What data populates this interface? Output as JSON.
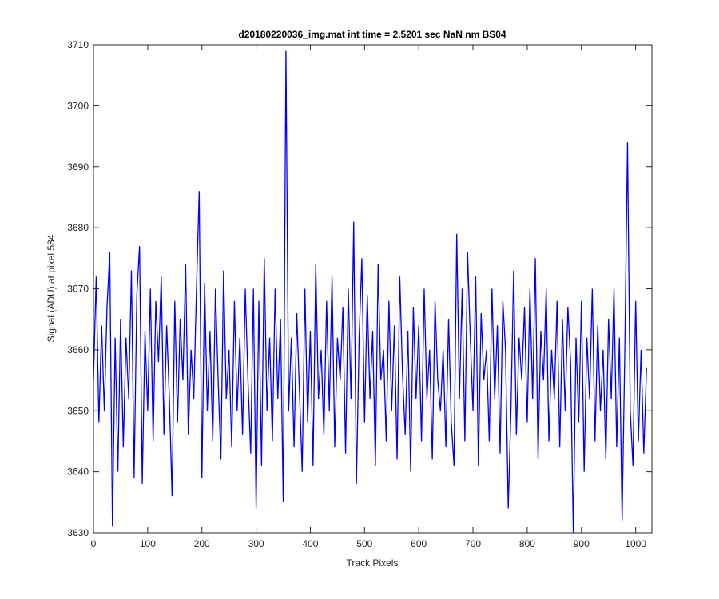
{
  "chart_data": {
    "type": "line",
    "title": "d20180220036_img.mat int time = 2.5201 sec  NaN nm BS04",
    "xlabel": "Track Pixels",
    "ylabel": "Signal (ADU) at pixel 584",
    "xlim": [
      0,
      1030
    ],
    "ylim": [
      3630,
      3710
    ],
    "xticks": [
      0,
      100,
      200,
      300,
      400,
      500,
      600,
      700,
      800,
      900,
      1000
    ],
    "yticks": [
      3630,
      3640,
      3650,
      3660,
      3670,
      3680,
      3690,
      3700,
      3710
    ],
    "x": [
      0,
      5,
      10,
      15,
      20,
      25,
      30,
      35,
      40,
      45,
      50,
      55,
      60,
      65,
      70,
      75,
      80,
      85,
      90,
      95,
      100,
      105,
      110,
      115,
      120,
      125,
      130,
      135,
      140,
      145,
      150,
      155,
      160,
      165,
      170,
      175,
      180,
      185,
      190,
      195,
      200,
      205,
      210,
      215,
      220,
      225,
      230,
      235,
      240,
      245,
      250,
      255,
      260,
      265,
      270,
      275,
      280,
      285,
      290,
      295,
      300,
      305,
      310,
      315,
      320,
      325,
      330,
      335,
      340,
      345,
      350,
      355,
      360,
      365,
      370,
      375,
      380,
      385,
      390,
      395,
      400,
      405,
      410,
      415,
      420,
      425,
      430,
      435,
      440,
      445,
      450,
      455,
      460,
      465,
      470,
      475,
      480,
      485,
      490,
      495,
      500,
      505,
      510,
      515,
      520,
      525,
      530,
      535,
      540,
      545,
      550,
      555,
      560,
      565,
      570,
      575,
      580,
      585,
      590,
      595,
      600,
      605,
      610,
      615,
      620,
      625,
      630,
      635,
      640,
      645,
      650,
      655,
      660,
      665,
      670,
      675,
      680,
      685,
      690,
      695,
      700,
      705,
      710,
      715,
      720,
      725,
      730,
      735,
      740,
      745,
      750,
      755,
      760,
      765,
      770,
      775,
      780,
      785,
      790,
      795,
      800,
      805,
      810,
      815,
      820,
      825,
      830,
      835,
      840,
      845,
      850,
      855,
      860,
      865,
      870,
      875,
      880,
      885,
      890,
      895,
      900,
      905,
      910,
      915,
      920,
      925,
      930,
      935,
      940,
      945,
      950,
      955,
      960,
      965,
      970,
      975,
      980,
      985,
      990,
      995,
      1000,
      1005,
      1010,
      1015,
      1020
    ],
    "series": [
      {
        "name": "signal",
        "color": "#0000ff",
        "values": [
          3655,
          3672,
          3648,
          3664,
          3650,
          3667,
          3676,
          3631,
          3662,
          3640,
          3665,
          3644,
          3662,
          3652,
          3673,
          3639,
          3669,
          3677,
          3638,
          3663,
          3650,
          3670,
          3645,
          3668,
          3658,
          3672,
          3646,
          3664,
          3652,
          3636,
          3668,
          3648,
          3665,
          3655,
          3674,
          3646,
          3660,
          3652,
          3670,
          3686,
          3639,
          3671,
          3650,
          3663,
          3645,
          3670,
          3655,
          3642,
          3673,
          3652,
          3660,
          3644,
          3668,
          3650,
          3662,
          3646,
          3670,
          3655,
          3643,
          3670,
          3634,
          3668,
          3641,
          3675,
          3650,
          3662,
          3645,
          3670,
          3652,
          3665,
          3635,
          3709,
          3650,
          3662,
          3644,
          3666,
          3653,
          3640,
          3670,
          3648,
          3663,
          3641,
          3674,
          3652,
          3660,
          3646,
          3668,
          3650,
          3672,
          3644,
          3662,
          3655,
          3667,
          3643,
          3670,
          3652,
          3681,
          3638,
          3662,
          3675,
          3648,
          3669,
          3652,
          3663,
          3641,
          3674,
          3655,
          3660,
          3645,
          3668,
          3650,
          3664,
          3642,
          3672,
          3656,
          3646,
          3663,
          3640,
          3667,
          3652,
          3664,
          3645,
          3670,
          3652,
          3660,
          3642,
          3668,
          3655,
          3650,
          3660,
          3644,
          3665,
          3648,
          3641,
          3679,
          3652,
          3670,
          3645,
          3676,
          3662,
          3650,
          3672,
          3641,
          3666,
          3655,
          3660,
          3645,
          3670,
          3652,
          3664,
          3643,
          3668,
          3660,
          3634,
          3650,
          3673,
          3646,
          3662,
          3655,
          3667,
          3648,
          3670,
          3652,
          3675,
          3642,
          3663,
          3655,
          3670,
          3645,
          3660,
          3652,
          3668,
          3644,
          3665,
          3650,
          3667,
          3658,
          3630,
          3662,
          3648,
          3668,
          3640,
          3662,
          3652,
          3670,
          3645,
          3664,
          3650,
          3660,
          3642,
          3665,
          3652,
          3670,
          3644,
          3662,
          3632,
          3660,
          3694,
          3650,
          3641,
          3668,
          3645,
          3660,
          3643,
          3657
        ]
      }
    ]
  }
}
